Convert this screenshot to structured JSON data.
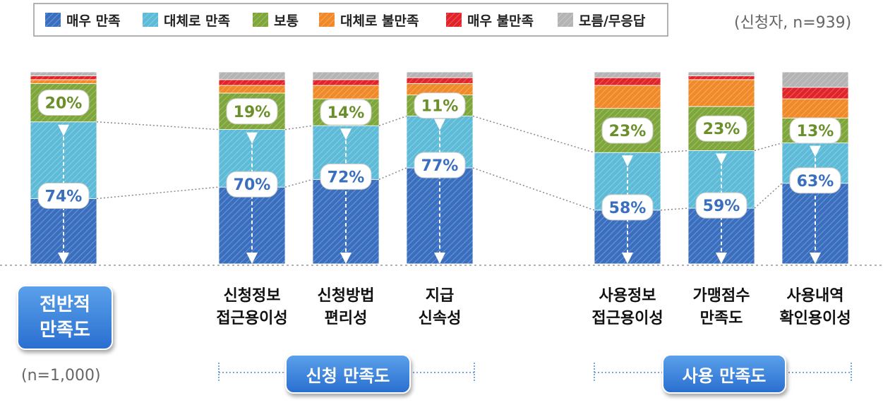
{
  "legend": [
    {
      "label": "매우 만족",
      "color": "#3a6fbf"
    },
    {
      "label": "대체로 만족",
      "color": "#5dbbd8"
    },
    {
      "label": "보통",
      "color": "#7ea63a"
    },
    {
      "label": "대체로 불만족",
      "color": "#f08a28"
    },
    {
      "label": "매우 불만족",
      "color": "#e0242a"
    },
    {
      "label": "모름/무응답",
      "color": "#b4b4b4"
    }
  ],
  "respondent_note": "(신청자, n=939)",
  "overall": {
    "label": "전반적\n만족도",
    "note": "(n=1,000)"
  },
  "groups": [
    {
      "name": "신청 만족도"
    },
    {
      "name": "사용 만족도"
    }
  ],
  "chart_data": {
    "type": "bar",
    "stacked": true,
    "categories": [
      "전반적 만족도",
      "신청정보 접근용이성",
      "신청방법 편리성",
      "지급 신속성",
      "사용정보 접근용이성",
      "가맹점수 만족도",
      "사용내역 확인용이성"
    ],
    "category_labels": [
      "",
      "신청정보\n접근용이성",
      "신청방법\n편리성",
      "지급\n신속성",
      "사용정보\n접근용이성",
      "가맹점수\n만족도",
      "사용내역\n확인용이성"
    ],
    "series": [
      {
        "name": "매우 만족",
        "values": [
          34,
          40,
          44,
          50,
          28,
          29,
          42
        ]
      },
      {
        "name": "대체로 만족",
        "values": [
          40,
          30,
          28,
          27,
          30,
          30,
          21
        ]
      },
      {
        "name": "보통",
        "values": [
          20,
          19,
          14,
          11,
          23,
          23,
          13
        ]
      },
      {
        "name": "대체로 불만족",
        "values": [
          2,
          4,
          7,
          6,
          12,
          14,
          10
        ]
      },
      {
        "name": "매우 불만족",
        "values": [
          2,
          3,
          3,
          3,
          4,
          2,
          6
        ]
      },
      {
        "name": "모름/무응답",
        "values": [
          2,
          4,
          4,
          3,
          3,
          2,
          8
        ]
      }
    ],
    "satisfied_labels": [
      "74%",
      "70%",
      "72%",
      "77%",
      "58%",
      "59%",
      "63%"
    ],
    "neutral_labels": [
      "20%",
      "19%",
      "14%",
      "11%",
      "23%",
      "23%",
      "13%"
    ],
    "ylim": [
      0,
      100
    ]
  }
}
